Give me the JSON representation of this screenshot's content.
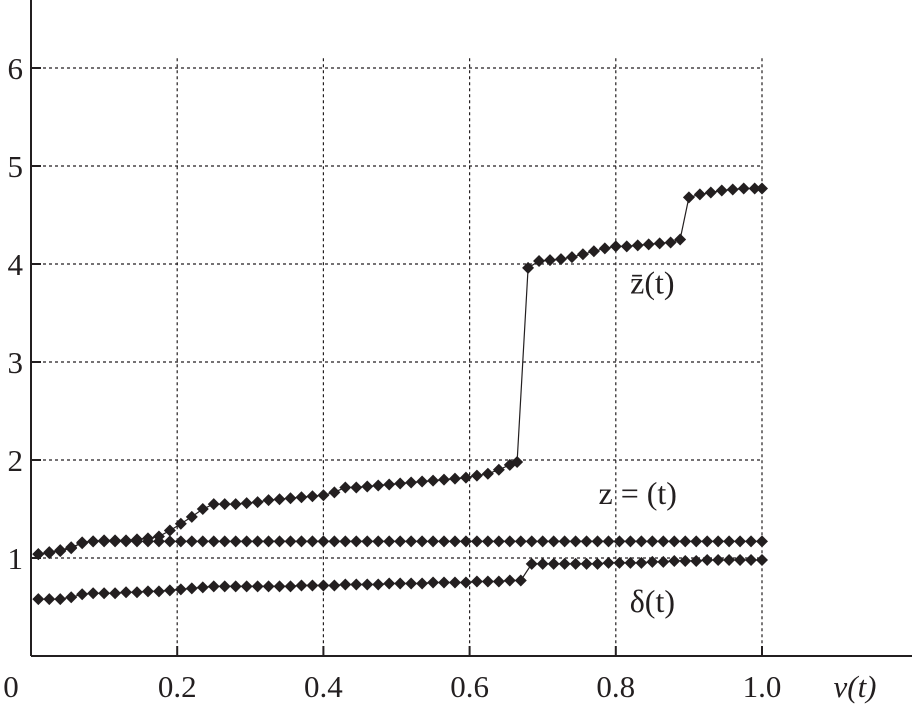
{
  "chart_data": {
    "type": "line",
    "xlabel": "v(t)",
    "ylabel": "",
    "xlim": [
      0,
      1.1
    ],
    "ylim": [
      0,
      6.7
    ],
    "x_ticks": [
      {
        "value": 0,
        "label": "0"
      },
      {
        "value": 0.2,
        "label": "0.2"
      },
      {
        "value": 0.4,
        "label": "0.4"
      },
      {
        "value": 0.6,
        "label": "0.6"
      },
      {
        "value": 0.8,
        "label": "0.8"
      },
      {
        "value": 1.0,
        "label": "1.0"
      }
    ],
    "y_ticks": [
      {
        "value": 1,
        "label": "1"
      },
      {
        "value": 2,
        "label": "2"
      },
      {
        "value": 3,
        "label": "3"
      },
      {
        "value": 4,
        "label": "4"
      },
      {
        "value": 5,
        "label": "5"
      },
      {
        "value": 6,
        "label": "6"
      }
    ],
    "grid": true,
    "series": [
      {
        "name": "z̄(t)",
        "label_position": [
          0.85,
          3.7
        ],
        "points": [
          [
            0.01,
            1.04
          ],
          [
            0.025,
            1.05
          ],
          [
            0.04,
            1.07
          ],
          [
            0.055,
            1.1
          ],
          [
            0.07,
            1.16
          ],
          [
            0.085,
            1.17
          ],
          [
            0.1,
            1.18
          ],
          [
            0.115,
            1.18
          ],
          [
            0.13,
            1.18
          ],
          [
            0.145,
            1.19
          ],
          [
            0.16,
            1.2
          ],
          [
            0.175,
            1.22
          ],
          [
            0.19,
            1.28
          ],
          [
            0.205,
            1.35
          ],
          [
            0.22,
            1.42
          ],
          [
            0.235,
            1.5
          ],
          [
            0.25,
            1.55
          ],
          [
            0.265,
            1.55
          ],
          [
            0.28,
            1.55
          ],
          [
            0.295,
            1.56
          ],
          [
            0.31,
            1.57
          ],
          [
            0.325,
            1.59
          ],
          [
            0.34,
            1.6
          ],
          [
            0.355,
            1.61
          ],
          [
            0.37,
            1.62
          ],
          [
            0.385,
            1.63
          ],
          [
            0.4,
            1.64
          ],
          [
            0.415,
            1.67
          ],
          [
            0.43,
            1.72
          ],
          [
            0.445,
            1.72
          ],
          [
            0.46,
            1.73
          ],
          [
            0.475,
            1.74
          ],
          [
            0.49,
            1.75
          ],
          [
            0.505,
            1.76
          ],
          [
            0.52,
            1.77
          ],
          [
            0.535,
            1.78
          ],
          [
            0.55,
            1.79
          ],
          [
            0.565,
            1.8
          ],
          [
            0.58,
            1.81
          ],
          [
            0.595,
            1.82
          ],
          [
            0.61,
            1.84
          ],
          [
            0.625,
            1.86
          ],
          [
            0.64,
            1.9
          ],
          [
            0.655,
            1.95
          ],
          [
            0.665,
            1.98
          ],
          [
            0.68,
            3.96
          ],
          [
            0.695,
            4.03
          ],
          [
            0.71,
            4.04
          ],
          [
            0.725,
            4.05
          ],
          [
            0.74,
            4.07
          ],
          [
            0.755,
            4.1
          ],
          [
            0.77,
            4.13
          ],
          [
            0.785,
            4.16
          ],
          [
            0.8,
            4.18
          ],
          [
            0.815,
            4.18
          ],
          [
            0.83,
            4.19
          ],
          [
            0.845,
            4.2
          ],
          [
            0.86,
            4.21
          ],
          [
            0.875,
            4.22
          ],
          [
            0.888,
            4.25
          ],
          [
            0.9,
            4.68
          ],
          [
            0.915,
            4.71
          ],
          [
            0.93,
            4.73
          ],
          [
            0.945,
            4.75
          ],
          [
            0.96,
            4.76
          ],
          [
            0.975,
            4.77
          ],
          [
            0.99,
            4.77
          ],
          [
            1.0,
            4.77
          ]
        ]
      },
      {
        "name": "z = (t)",
        "label_position": [
          0.83,
          1.55
        ],
        "points": [
          [
            0.01,
            1.04
          ],
          [
            0.025,
            1.06
          ],
          [
            0.04,
            1.08
          ],
          [
            0.055,
            1.11
          ],
          [
            0.07,
            1.15
          ],
          [
            0.085,
            1.17
          ],
          [
            0.1,
            1.17
          ],
          [
            0.115,
            1.17
          ],
          [
            0.13,
            1.17
          ],
          [
            0.145,
            1.17
          ],
          [
            0.16,
            1.17
          ],
          [
            0.175,
            1.17
          ],
          [
            0.19,
            1.17
          ],
          [
            0.205,
            1.17
          ],
          [
            0.22,
            1.17
          ],
          [
            0.235,
            1.17
          ],
          [
            0.25,
            1.17
          ],
          [
            0.265,
            1.17
          ],
          [
            0.28,
            1.17
          ],
          [
            0.295,
            1.17
          ],
          [
            0.31,
            1.17
          ],
          [
            0.325,
            1.17
          ],
          [
            0.34,
            1.17
          ],
          [
            0.355,
            1.17
          ],
          [
            0.37,
            1.17
          ],
          [
            0.385,
            1.17
          ],
          [
            0.4,
            1.17
          ],
          [
            0.415,
            1.17
          ],
          [
            0.43,
            1.17
          ],
          [
            0.445,
            1.17
          ],
          [
            0.46,
            1.17
          ],
          [
            0.475,
            1.17
          ],
          [
            0.49,
            1.17
          ],
          [
            0.505,
            1.17
          ],
          [
            0.52,
            1.17
          ],
          [
            0.535,
            1.17
          ],
          [
            0.55,
            1.17
          ],
          [
            0.565,
            1.17
          ],
          [
            0.58,
            1.17
          ],
          [
            0.595,
            1.17
          ],
          [
            0.61,
            1.17
          ],
          [
            0.625,
            1.17
          ],
          [
            0.64,
            1.17
          ],
          [
            0.655,
            1.17
          ],
          [
            0.67,
            1.17
          ],
          [
            0.685,
            1.17
          ],
          [
            0.7,
            1.17
          ],
          [
            0.715,
            1.17
          ],
          [
            0.73,
            1.17
          ],
          [
            0.745,
            1.17
          ],
          [
            0.76,
            1.17
          ],
          [
            0.775,
            1.17
          ],
          [
            0.79,
            1.17
          ],
          [
            0.805,
            1.17
          ],
          [
            0.82,
            1.17
          ],
          [
            0.835,
            1.17
          ],
          [
            0.85,
            1.17
          ],
          [
            0.865,
            1.17
          ],
          [
            0.88,
            1.17
          ],
          [
            0.895,
            1.17
          ],
          [
            0.91,
            1.17
          ],
          [
            0.925,
            1.17
          ],
          [
            0.94,
            1.17
          ],
          [
            0.955,
            1.17
          ],
          [
            0.97,
            1.17
          ],
          [
            0.985,
            1.17
          ],
          [
            1.0,
            1.17
          ]
        ]
      },
      {
        "name": "δ(t)",
        "label_position": [
          0.85,
          0.45
        ],
        "points": [
          [
            0.01,
            0.58
          ],
          [
            0.025,
            0.58
          ],
          [
            0.04,
            0.58
          ],
          [
            0.055,
            0.6
          ],
          [
            0.07,
            0.63
          ],
          [
            0.085,
            0.64
          ],
          [
            0.1,
            0.64
          ],
          [
            0.115,
            0.64
          ],
          [
            0.13,
            0.65
          ],
          [
            0.145,
            0.65
          ],
          [
            0.16,
            0.66
          ],
          [
            0.175,
            0.66
          ],
          [
            0.19,
            0.67
          ],
          [
            0.205,
            0.68
          ],
          [
            0.22,
            0.69
          ],
          [
            0.235,
            0.7
          ],
          [
            0.25,
            0.71
          ],
          [
            0.265,
            0.71
          ],
          [
            0.28,
            0.71
          ],
          [
            0.295,
            0.71
          ],
          [
            0.31,
            0.71
          ],
          [
            0.325,
            0.71
          ],
          [
            0.34,
            0.71
          ],
          [
            0.355,
            0.71
          ],
          [
            0.37,
            0.72
          ],
          [
            0.385,
            0.72
          ],
          [
            0.4,
            0.72
          ],
          [
            0.415,
            0.72
          ],
          [
            0.43,
            0.73
          ],
          [
            0.445,
            0.73
          ],
          [
            0.46,
            0.73
          ],
          [
            0.475,
            0.73
          ],
          [
            0.49,
            0.74
          ],
          [
            0.505,
            0.74
          ],
          [
            0.52,
            0.74
          ],
          [
            0.535,
            0.74
          ],
          [
            0.55,
            0.75
          ],
          [
            0.565,
            0.75
          ],
          [
            0.58,
            0.75
          ],
          [
            0.595,
            0.75
          ],
          [
            0.61,
            0.76
          ],
          [
            0.625,
            0.76
          ],
          [
            0.64,
            0.76
          ],
          [
            0.655,
            0.77
          ],
          [
            0.67,
            0.77
          ],
          [
            0.685,
            0.94
          ],
          [
            0.7,
            0.94
          ],
          [
            0.715,
            0.94
          ],
          [
            0.73,
            0.94
          ],
          [
            0.745,
            0.94
          ],
          [
            0.76,
            0.94
          ],
          [
            0.775,
            0.94
          ],
          [
            0.79,
            0.95
          ],
          [
            0.805,
            0.95
          ],
          [
            0.82,
            0.95
          ],
          [
            0.835,
            0.95
          ],
          [
            0.85,
            0.96
          ],
          [
            0.865,
            0.96
          ],
          [
            0.88,
            0.97
          ],
          [
            0.895,
            0.97
          ],
          [
            0.91,
            0.97
          ],
          [
            0.925,
            0.98
          ],
          [
            0.94,
            0.98
          ],
          [
            0.955,
            0.98
          ],
          [
            0.97,
            0.98
          ],
          [
            0.985,
            0.98
          ],
          [
            1.0,
            0.98
          ]
        ]
      }
    ]
  }
}
